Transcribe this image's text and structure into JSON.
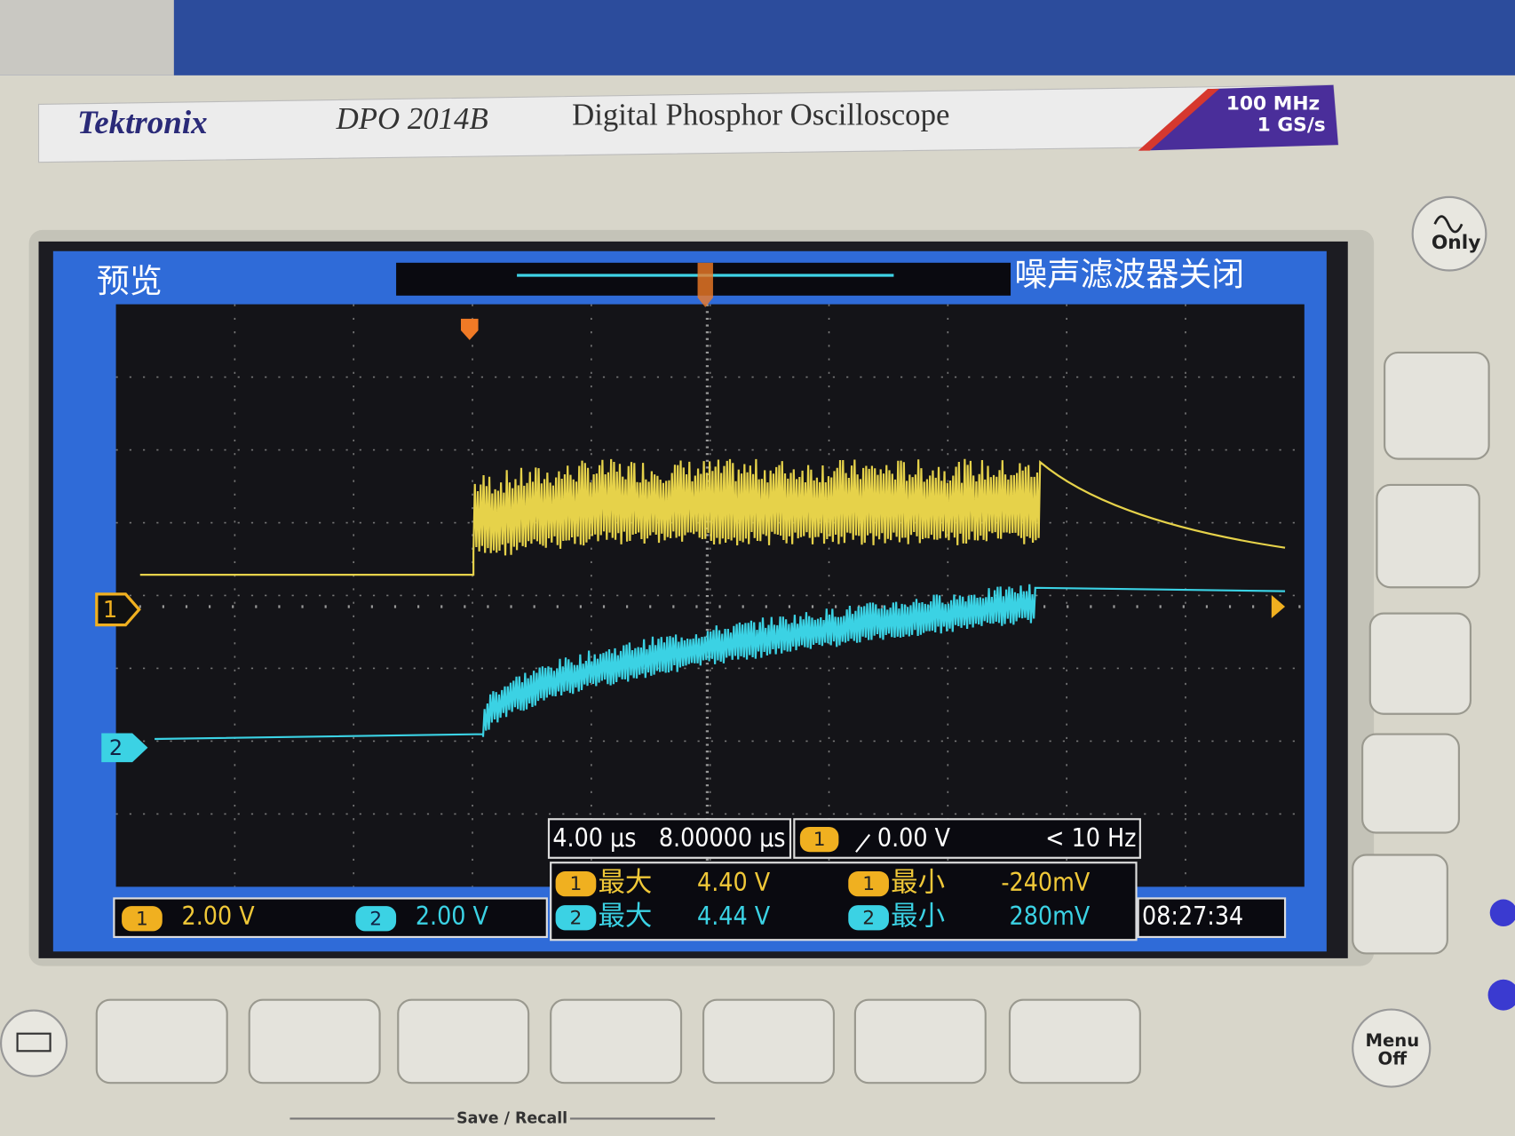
{
  "header": {
    "brand": "Tektronix",
    "model": "DPO 2014B",
    "description": "Digital Phosphor Oscilloscope",
    "bandwidth": "100 MHz",
    "sample_rate": "1 GS/s"
  },
  "buttons": {
    "only": "Only",
    "menu": "Menu",
    "off": "Off",
    "save_recall": "Save / Recall"
  },
  "screen": {
    "mode": "预览",
    "noise_filter": "噪声滤波器关闭",
    "timebase": "4.00 µs",
    "position": "8.00000 µs",
    "trigger": {
      "channel": "1",
      "level": "0.00 V",
      "frequency": "< 10 Hz"
    },
    "channels": [
      {
        "label": "1",
        "scale": "2.00 V"
      },
      {
        "label": "2",
        "scale": "2.00 V"
      }
    ],
    "measurements": [
      {
        "channel": "1",
        "name": "最大",
        "value": "4.40 V"
      },
      {
        "channel": "1",
        "name": "最小",
        "value": "-240mV"
      },
      {
        "channel": "2",
        "name": "最大",
        "value": "4.44 V"
      },
      {
        "channel": "2",
        "name": "最小",
        "value": "280mV"
      }
    ],
    "clock": "08:27:34"
  }
}
